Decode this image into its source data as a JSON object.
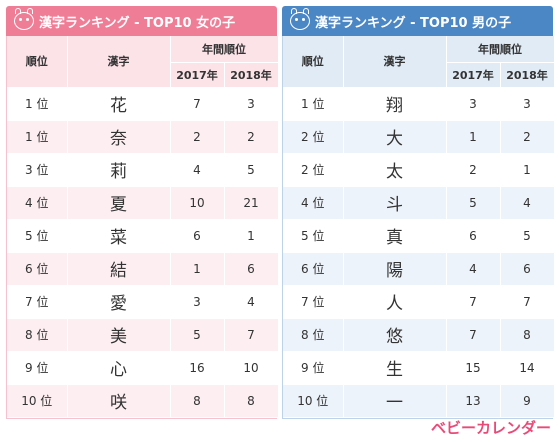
{
  "girls": {
    "title": "漢字ランキング - TOP10 女の子",
    "headers": {
      "rank": "順位",
      "kanji": "漢字",
      "yearly": "年間順位",
      "y1": "2017年",
      "y2": "2018年"
    },
    "rows": [
      {
        "rank": "1 位",
        "kanji": "花",
        "y1": "7",
        "y2": "3"
      },
      {
        "rank": "1 位",
        "kanji": "奈",
        "y1": "2",
        "y2": "2"
      },
      {
        "rank": "3 位",
        "kanji": "莉",
        "y1": "4",
        "y2": "5"
      },
      {
        "rank": "4 位",
        "kanji": "夏",
        "y1": "10",
        "y2": "21"
      },
      {
        "rank": "5 位",
        "kanji": "菜",
        "y1": "6",
        "y2": "1"
      },
      {
        "rank": "6 位",
        "kanji": "結",
        "y1": "1",
        "y2": "6"
      },
      {
        "rank": "7 位",
        "kanji": "愛",
        "y1": "3",
        "y2": "4"
      },
      {
        "rank": "8 位",
        "kanji": "美",
        "y1": "5",
        "y2": "7"
      },
      {
        "rank": "9 位",
        "kanji": "心",
        "y1": "16",
        "y2": "10"
      },
      {
        "rank": "10 位",
        "kanji": "咲",
        "y1": "8",
        "y2": "8"
      }
    ]
  },
  "boys": {
    "title": "漢字ランキング - TOP10 男の子",
    "headers": {
      "rank": "順位",
      "kanji": "漢字",
      "yearly": "年間順位",
      "y1": "2017年",
      "y2": "2018年"
    },
    "rows": [
      {
        "rank": "1 位",
        "kanji": "翔",
        "y1": "3",
        "y2": "3"
      },
      {
        "rank": "2 位",
        "kanji": "大",
        "y1": "1",
        "y2": "2"
      },
      {
        "rank": "2 位",
        "kanji": "太",
        "y1": "2",
        "y2": "1"
      },
      {
        "rank": "4 位",
        "kanji": "斗",
        "y1": "5",
        "y2": "4"
      },
      {
        "rank": "5 位",
        "kanji": "真",
        "y1": "6",
        "y2": "5"
      },
      {
        "rank": "6 位",
        "kanji": "陽",
        "y1": "4",
        "y2": "6"
      },
      {
        "rank": "7 位",
        "kanji": "人",
        "y1": "7",
        "y2": "7"
      },
      {
        "rank": "8 位",
        "kanji": "悠",
        "y1": "7",
        "y2": "8"
      },
      {
        "rank": "9 位",
        "kanji": "生",
        "y1": "15",
        "y2": "14"
      },
      {
        "rank": "10 位",
        "kanji": "一",
        "y1": "13",
        "y2": "9"
      }
    ]
  },
  "brand": "ベビーカレンダー",
  "colors": {
    "girls_header": "#f07d96",
    "girls_stripe": "#fdeef1",
    "boys_header": "#4c87c5",
    "boys_stripe": "#edf3fa",
    "brand": "#e94a78"
  },
  "icons": {
    "panel_title_icon": "face-icon"
  }
}
